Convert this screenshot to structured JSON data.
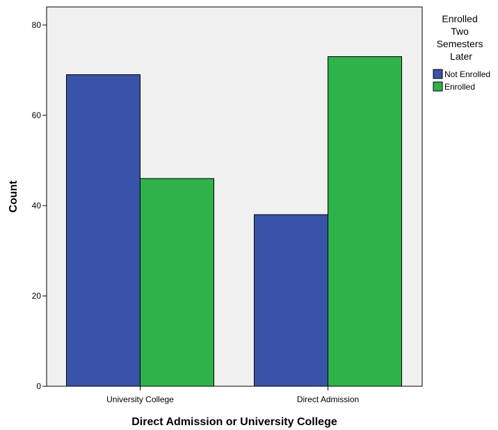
{
  "chart_data": {
    "type": "bar",
    "categories": [
      "University College",
      "Direct Admission"
    ],
    "series": [
      {
        "name": "Not Enrolled",
        "values": [
          69,
          38
        ],
        "color": "#3953a8"
      },
      {
        "name": "Enrolled",
        "values": [
          46,
          73
        ],
        "color": "#2db34a"
      }
    ],
    "xlabel": "Direct Admission or University College",
    "ylabel": "Count",
    "ylim": [
      0,
      80
    ],
    "yticks": [
      0,
      20,
      40,
      60,
      80
    ],
    "grid": false,
    "legend": {
      "title_lines": [
        "Enrolled",
        "Two",
        "Semesters",
        "Later"
      ],
      "placement": "right"
    },
    "plot_background": "#f0f0f0"
  }
}
